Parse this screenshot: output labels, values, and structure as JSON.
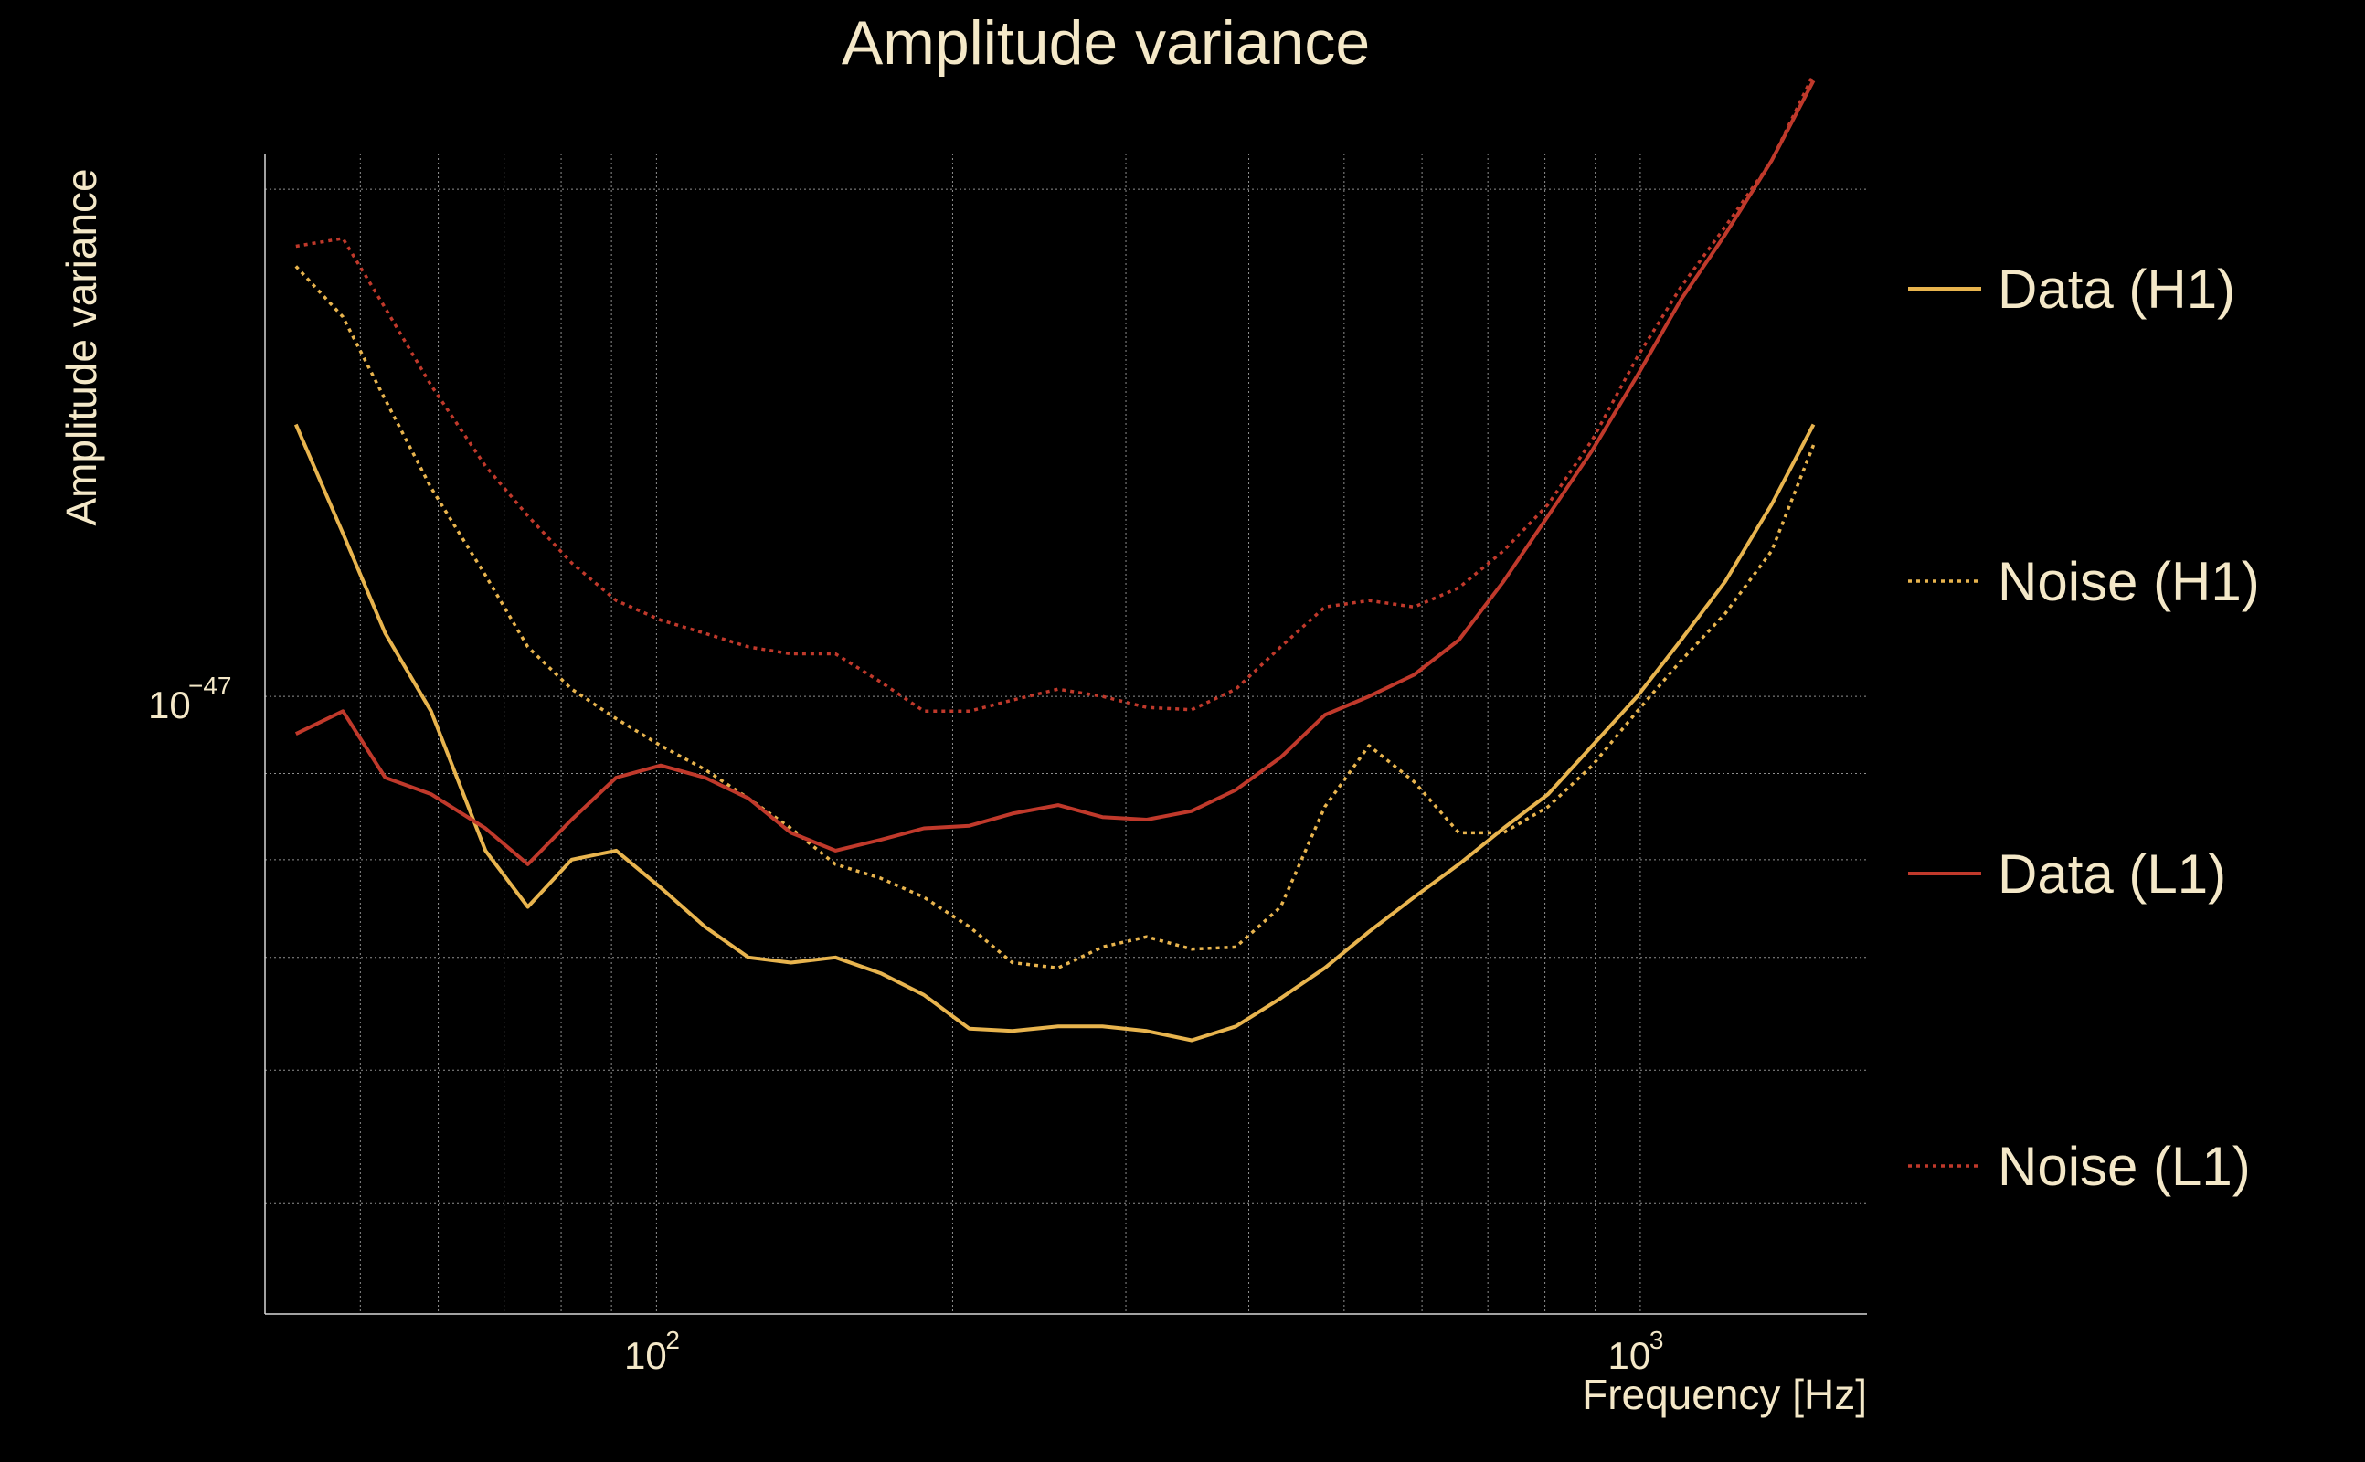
{
  "colors": {
    "background": "#000000",
    "text": "#f4e8c8",
    "grid": "#8f8f8f",
    "h1": "#e8b44e",
    "l1": "#c0392b"
  },
  "chart_data": {
    "type": "line",
    "title": "Amplitude variance",
    "xlabel": "Frequency [Hz]",
    "ylabel": "Amplitude variance",
    "x_scale": "log",
    "y_scale": "log",
    "xlim": [
      40,
      1700
    ],
    "ylim": [
      4.3e-48,
      2.1e-47
    ],
    "grid": true,
    "legend_position": "right",
    "x_ticks": [
      {
        "value": 100,
        "base": "10",
        "exp": "2"
      },
      {
        "value": 1000,
        "base": "10",
        "exp": "3"
      }
    ],
    "y_ticks": [
      {
        "value": 1e-47,
        "base": "10",
        "exp": "−47"
      }
    ],
    "series": [
      {
        "name": "Data (H1)",
        "key": "h1",
        "style": "solid",
        "x": [
          43,
          48,
          53,
          59,
          67,
          74,
          82,
          91,
          101,
          112,
          124,
          137,
          152,
          169,
          187,
          208,
          230,
          256,
          284,
          315,
          350,
          388,
          431,
          478,
          530,
          589,
          654,
          726,
          806,
          894,
          993,
          1100,
          1220,
          1360,
          1500
        ],
        "y": [
          1.45e-47,
          1.25e-47,
          1.09e-47,
          9.8e-48,
          8.1e-48,
          7.5e-48,
          8e-48,
          8.1e-48,
          7.7e-48,
          7.3e-48,
          7e-48,
          6.95e-48,
          7e-48,
          6.85e-48,
          6.65e-48,
          6.35e-48,
          6.33e-48,
          6.37e-48,
          6.37e-48,
          6.33e-48,
          6.25e-48,
          6.37e-48,
          6.62e-48,
          6.9e-48,
          7.25e-48,
          7.6e-48,
          7.95e-48,
          8.35e-48,
          8.75e-48,
          9.35e-48,
          1e-47,
          1.08e-47,
          1.17e-47,
          1.3e-47,
          1.45e-47
        ]
      },
      {
        "name": "Noise (H1)",
        "key": "h1",
        "style": "dotted",
        "x": [
          43,
          48,
          53,
          59,
          67,
          74,
          82,
          91,
          101,
          112,
          124,
          137,
          152,
          169,
          187,
          208,
          230,
          256,
          284,
          315,
          350,
          388,
          431,
          478,
          530,
          589,
          654,
          726,
          806,
          894,
          993,
          1100,
          1220,
          1360,
          1500
        ],
        "y": [
          1.8e-47,
          1.68e-47,
          1.5e-47,
          1.33e-47,
          1.18e-47,
          1.07e-47,
          1.01e-47,
          9.7e-48,
          9.35e-48,
          9.05e-48,
          8.7e-48,
          8.35e-48,
          7.95e-48,
          7.8e-48,
          7.6e-48,
          7.3e-48,
          6.95e-48,
          6.9e-48,
          7.1e-48,
          7.2e-48,
          7.08e-48,
          7.1e-48,
          7.5e-48,
          8.6e-48,
          9.35e-48,
          8.9e-48,
          8.3e-48,
          8.3e-48,
          8.6e-48,
          9.1e-48,
          9.8e-48,
          1.05e-47,
          1.12e-47,
          1.22e-47,
          1.41e-47
        ]
      },
      {
        "name": "Data (L1)",
        "key": "l1",
        "style": "solid",
        "x": [
          43,
          48,
          53,
          59,
          67,
          74,
          82,
          91,
          101,
          112,
          124,
          137,
          152,
          169,
          187,
          208,
          230,
          256,
          284,
          315,
          350,
          388,
          431,
          478,
          530,
          589,
          654,
          726,
          806,
          894,
          993,
          1100,
          1220,
          1360,
          1500
        ],
        "y": [
          9.5e-48,
          9.8e-48,
          8.95e-48,
          8.75e-48,
          8.35e-48,
          7.95e-48,
          8.45e-48,
          8.95e-48,
          9.1e-48,
          8.95e-48,
          8.7e-48,
          8.3e-48,
          8.1e-48,
          8.22e-48,
          8.35e-48,
          8.38e-48,
          8.52e-48,
          8.62e-48,
          8.48e-48,
          8.45e-48,
          8.55e-48,
          8.8e-48,
          9.2e-48,
          9.75e-48,
          1e-47,
          1.03e-47,
          1.08e-47,
          1.17e-47,
          1.28e-47,
          1.4e-47,
          1.55e-47,
          1.72e-47,
          1.88e-47,
          2.08e-47,
          2.32e-47
        ]
      },
      {
        "name": "Noise (L1)",
        "key": "l1",
        "style": "dotted",
        "x": [
          43,
          48,
          53,
          59,
          67,
          74,
          82,
          91,
          101,
          112,
          124,
          137,
          152,
          169,
          187,
          208,
          230,
          256,
          284,
          315,
          350,
          388,
          431,
          478,
          530,
          589,
          654,
          726,
          806,
          894,
          993,
          1100,
          1220,
          1360,
          1500
        ],
        "y": [
          1.85e-47,
          1.87e-47,
          1.7e-47,
          1.53e-47,
          1.37e-47,
          1.28e-47,
          1.2e-47,
          1.14e-47,
          1.11e-47,
          1.09e-47,
          1.07e-47,
          1.06e-47,
          1.06e-47,
          1.02e-47,
          9.8e-48,
          9.8e-48,
          9.95e-48,
          1.01e-47,
          1e-47,
          9.85e-48,
          9.82e-48,
          1.01e-47,
          1.07e-47,
          1.13e-47,
          1.14e-47,
          1.13e-47,
          1.16e-47,
          1.22e-47,
          1.3e-47,
          1.42e-47,
          1.59e-47,
          1.75e-47,
          1.9e-47,
          2.08e-47,
          2.34e-47
        ]
      }
    ]
  }
}
